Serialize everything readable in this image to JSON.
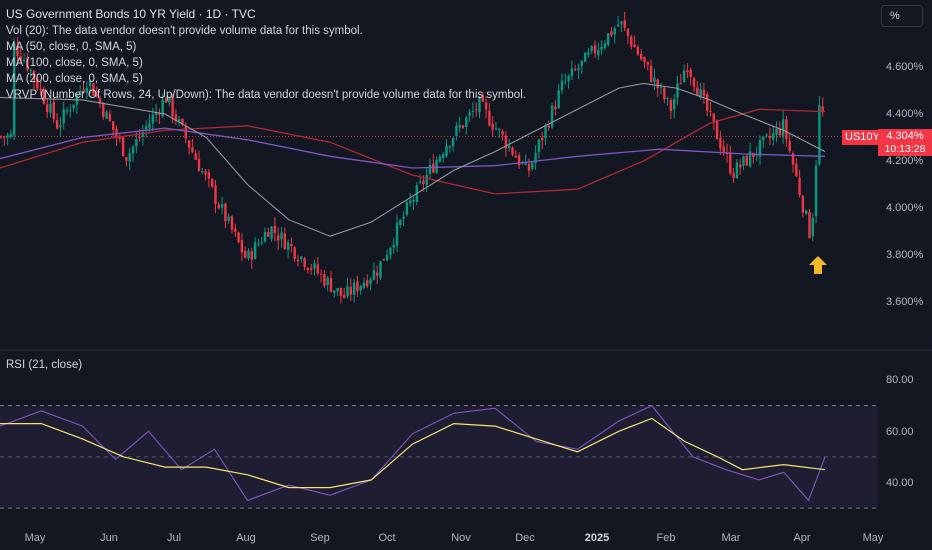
{
  "header": {
    "title": "US Government Bonds 10 YR Yield · 1D · TVC",
    "indicators": [
      "Vol (20): The data vendor doesn't provide volume data for this symbol.",
      "MA (50, close, 0, SMA, 5)",
      "MA (100, close, 0, SMA, 5)",
      "MA (200, close, 0, SMA, 5)",
      "VRVP (Number Of Rows, 24, Up/Down): The data vendor doesn't provide volume data for this symbol."
    ]
  },
  "unit_button": "%",
  "symbol_tag": "US10Y",
  "last_price": "4.304%",
  "countdown": "10:13:28",
  "rsi_title": "RSI (21, close)",
  "colors": {
    "up": "#089981",
    "down": "#f23645",
    "ma50": "#9598a1",
    "ma100": "#7e57c2",
    "ma200": "#b22833",
    "rsi": "#7e57c2",
    "rsi_ma": "#f5e66f",
    "arrow": "#f4b729"
  },
  "chart_data": [
    {
      "type": "candlestick",
      "title": "US Government Bonds 10 YR Yield · 1D · TVC",
      "y_ticks": [
        "4.600%",
        "4.400%",
        "4.200%",
        "4.000%",
        "3.800%",
        "3.600%"
      ],
      "ylim": [
        3.5,
        4.8
      ],
      "x_ticks": [
        "May",
        "Jun",
        "Jul",
        "Aug",
        "Sep",
        "Oct",
        "Nov",
        "Dec",
        "2025",
        "Feb",
        "Mar",
        "Apr",
        "May"
      ],
      "keypoints": [
        {
          "date": "2024-04-25",
          "close": 4.7
        },
        {
          "date": "2024-05-01",
          "close": 4.63
        },
        {
          "date": "2024-05-15",
          "close": 4.35
        },
        {
          "date": "2024-05-28",
          "close": 4.55
        },
        {
          "date": "2024-06-14",
          "close": 4.22
        },
        {
          "date": "2024-07-01",
          "close": 4.47
        },
        {
          "date": "2024-07-17",
          "close": 4.15
        },
        {
          "date": "2024-08-05",
          "close": 3.78
        },
        {
          "date": "2024-08-15",
          "close": 3.92
        },
        {
          "date": "2024-09-16",
          "close": 3.62
        },
        {
          "date": "2024-10-01",
          "close": 3.74
        },
        {
          "date": "2024-10-15",
          "close": 4.02
        },
        {
          "date": "2024-10-31",
          "close": 4.28
        },
        {
          "date": "2024-11-14",
          "close": 4.44
        },
        {
          "date": "2024-12-05",
          "close": 4.15
        },
        {
          "date": "2024-12-20",
          "close": 4.52
        },
        {
          "date": "2025-01-14",
          "close": 4.79
        },
        {
          "date": "2025-02-05",
          "close": 4.42
        },
        {
          "date": "2025-02-12",
          "close": 4.62
        },
        {
          "date": "2025-03-04",
          "close": 4.15
        },
        {
          "date": "2025-03-26",
          "close": 4.35
        },
        {
          "date": "2025-04-04",
          "close": 3.99
        },
        {
          "date": "2025-04-07",
          "close": 3.87
        },
        {
          "date": "2025-04-11",
          "close": 4.49
        },
        {
          "date": "2025-04-13",
          "close": 4.304
        }
      ],
      "ma50": [
        [
          0,
          4.47
        ],
        [
          0.1,
          4.46
        ],
        [
          0.2,
          4.4
        ],
        [
          0.25,
          4.3
        ],
        [
          0.3,
          4.1
        ],
        [
          0.35,
          3.95
        ],
        [
          0.4,
          3.88
        ],
        [
          0.45,
          3.94
        ],
        [
          0.5,
          4.05
        ],
        [
          0.55,
          4.16
        ],
        [
          0.6,
          4.24
        ],
        [
          0.65,
          4.33
        ],
        [
          0.7,
          4.42
        ],
        [
          0.75,
          4.51
        ],
        [
          0.78,
          4.53
        ],
        [
          0.82,
          4.51
        ],
        [
          0.86,
          4.46
        ],
        [
          0.9,
          4.4
        ],
        [
          0.95,
          4.33
        ],
        [
          1,
          4.24
        ]
      ],
      "ma100": [
        [
          0,
          4.21
        ],
        [
          0.1,
          4.3
        ],
        [
          0.2,
          4.34
        ],
        [
          0.3,
          4.29
        ],
        [
          0.4,
          4.22
        ],
        [
          0.5,
          4.17
        ],
        [
          0.6,
          4.18
        ],
        [
          0.7,
          4.22
        ],
        [
          0.8,
          4.25
        ],
        [
          0.9,
          4.23
        ],
        [
          1,
          4.22
        ]
      ],
      "ma200": [
        [
          0,
          4.17
        ],
        [
          0.1,
          4.28
        ],
        [
          0.2,
          4.33
        ],
        [
          0.3,
          4.35
        ],
        [
          0.4,
          4.28
        ],
        [
          0.5,
          4.14
        ],
        [
          0.6,
          4.06
        ],
        [
          0.7,
          4.08
        ],
        [
          0.78,
          4.2
        ],
        [
          0.86,
          4.36
        ],
        [
          0.92,
          4.42
        ],
        [
          1,
          4.41
        ]
      ],
      "annotations": [
        "up-arrow"
      ]
    },
    {
      "type": "line",
      "title": "RSI (21, close)",
      "y_ticks": [
        "80.00",
        "60.00",
        "40.00"
      ],
      "ylim": [
        28,
        88
      ],
      "bands": [
        30,
        50,
        70
      ],
      "rsi": [
        [
          0,
          62
        ],
        [
          0.05,
          68
        ],
        [
          0.1,
          62
        ],
        [
          0.14,
          49
        ],
        [
          0.18,
          60
        ],
        [
          0.22,
          45
        ],
        [
          0.26,
          53
        ],
        [
          0.3,
          33
        ],
        [
          0.35,
          39
        ],
        [
          0.4,
          35
        ],
        [
          0.45,
          41
        ],
        [
          0.5,
          59
        ],
        [
          0.55,
          67
        ],
        [
          0.6,
          69
        ],
        [
          0.65,
          56
        ],
        [
          0.7,
          53
        ],
        [
          0.75,
          64
        ],
        [
          0.79,
          70
        ],
        [
          0.84,
          50
        ],
        [
          0.88,
          45
        ],
        [
          0.92,
          41
        ],
        [
          0.95,
          44
        ],
        [
          0.98,
          33
        ],
        [
          1,
          50
        ]
      ],
      "rsi_ma": [
        [
          0,
          63
        ],
        [
          0.05,
          63
        ],
        [
          0.1,
          57
        ],
        [
          0.15,
          50
        ],
        [
          0.2,
          46
        ],
        [
          0.25,
          46
        ],
        [
          0.3,
          43
        ],
        [
          0.35,
          38
        ],
        [
          0.4,
          38
        ],
        [
          0.45,
          41
        ],
        [
          0.5,
          55
        ],
        [
          0.55,
          63
        ],
        [
          0.6,
          62
        ],
        [
          0.64,
          58
        ],
        [
          0.7,
          52
        ],
        [
          0.75,
          60
        ],
        [
          0.79,
          65
        ],
        [
          0.83,
          56
        ],
        [
          0.87,
          50
        ],
        [
          0.9,
          45
        ],
        [
          0.95,
          47
        ],
        [
          1,
          45
        ]
      ]
    }
  ]
}
